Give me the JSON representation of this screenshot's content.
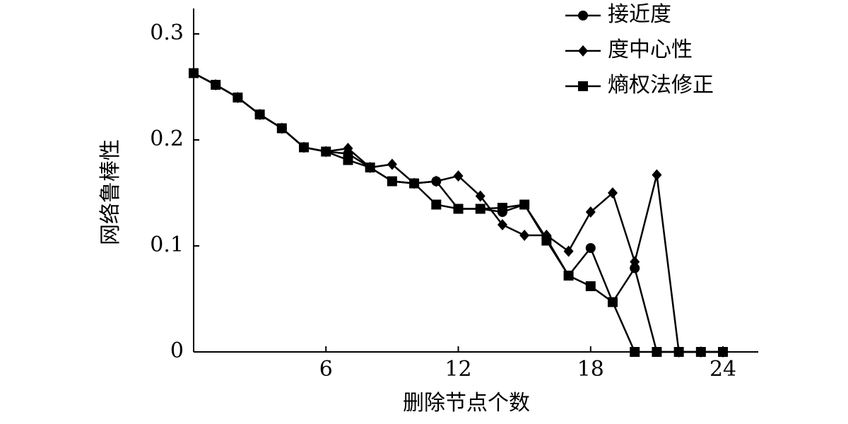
{
  "chart_data": {
    "type": "line",
    "x_label": "删除节点个数",
    "y_label": "网络鲁棒性",
    "x": [
      0,
      1,
      2,
      3,
      4,
      5,
      6,
      7,
      8,
      9,
      10,
      11,
      12,
      13,
      14,
      15,
      16,
      17,
      18,
      19,
      20,
      21,
      22,
      23,
      24
    ],
    "series": [
      {
        "name": "接近度",
        "color": "#000000",
        "marker": "circle",
        "values": [
          0.263,
          0.252,
          0.24,
          0.224,
          0.211,
          0.193,
          0.189,
          0.187,
          0.174,
          0.161,
          0.159,
          0.161,
          0.135,
          0.135,
          0.132,
          0.139,
          0.107,
          0.072,
          0.098,
          0.047,
          0.079,
          0,
          0,
          0,
          0
        ]
      },
      {
        "name": "度中心性",
        "color": "#000000",
        "marker": "diamond",
        "values": [
          0.263,
          0.252,
          0.24,
          0.224,
          0.211,
          0.193,
          0.189,
          0.192,
          0.174,
          0.177,
          0.159,
          0.161,
          0.166,
          0.147,
          0.12,
          0.11,
          0.11,
          0.095,
          0.132,
          0.15,
          0.085,
          0.167,
          0,
          0,
          0
        ]
      },
      {
        "name": "熵权法修正",
        "color": "#000000",
        "marker": "square",
        "values": [
          0.263,
          0.252,
          0.24,
          0.224,
          0.211,
          0.193,
          0.189,
          0.181,
          0.174,
          0.161,
          0.159,
          0.139,
          0.135,
          0.135,
          0.136,
          0.139,
          0.105,
          0.072,
          0.062,
          0.047,
          0,
          0,
          0,
          0,
          0
        ]
      }
    ],
    "xlim": [
      0,
      25.6
    ],
    "xticks": [
      6,
      12,
      18,
      24
    ],
    "ylim": [
      0,
      0.324
    ],
    "yticks": [
      0,
      0.1,
      0.2,
      0.3
    ],
    "legend": "top-right"
  }
}
